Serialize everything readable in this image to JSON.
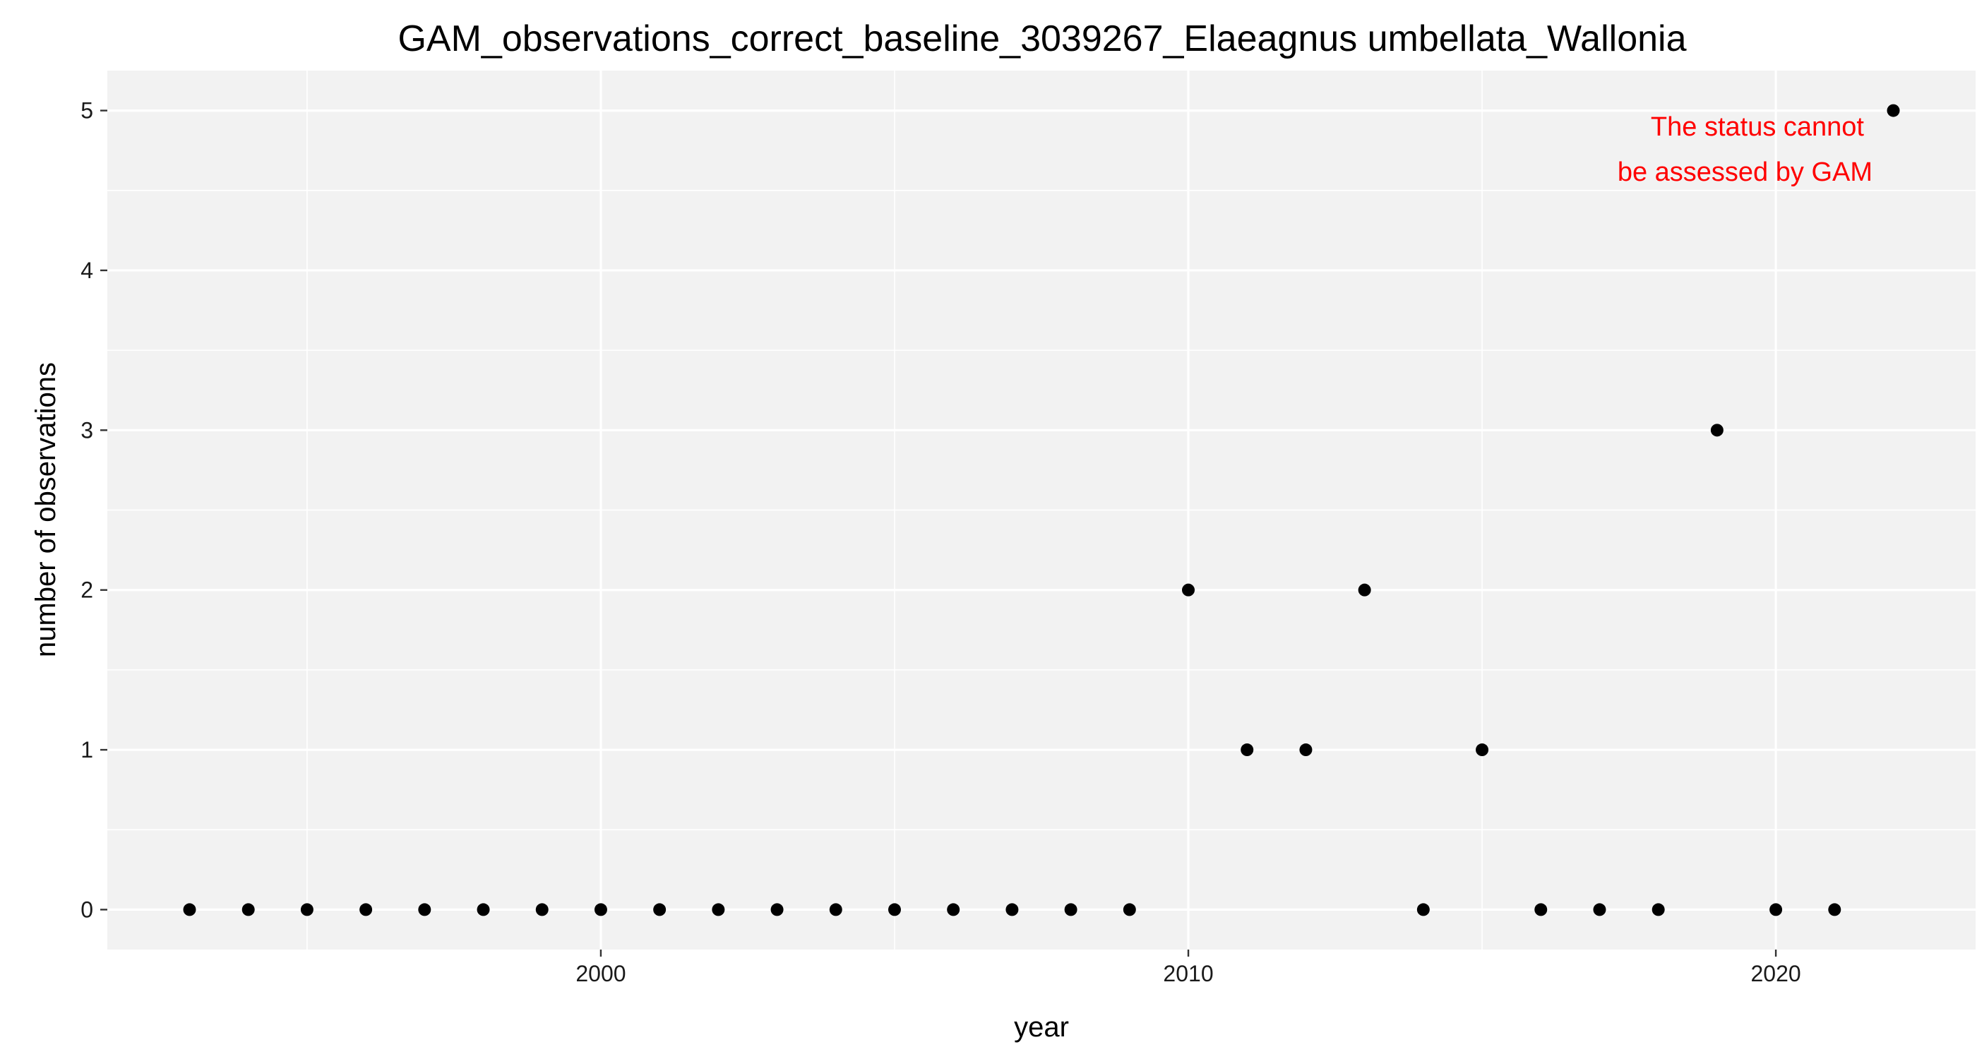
{
  "chart_data": {
    "type": "scatter",
    "title": "GAM_observations_correct_baseline_3039267_Elaeagnus umbellata_Wallonia",
    "xlabel": "year",
    "ylabel": "number of observations",
    "xlim": [
      1991.6,
      2023.4
    ],
    "ylim": [
      -0.25,
      5.25
    ],
    "x_ticks": [
      2000,
      2010,
      2020
    ],
    "x_minor_ticks": [
      1995,
      2005,
      2015
    ],
    "y_ticks": [
      0,
      1,
      2,
      3,
      4,
      5
    ],
    "y_minor_ticks": [
      0.5,
      1.5,
      2.5,
      3.5,
      4.5
    ],
    "grid": true,
    "legend": "none",
    "colors": {
      "panel_background": "#f2f2f2",
      "grid_line": "#ffffff",
      "point": "#000000",
      "annotation": "#ff0000"
    },
    "annotation": {
      "lines": [
        "The status cannot",
        "be assessed by GAM"
      ],
      "color": "#ff0000",
      "placement": "top-right"
    },
    "series": [
      {
        "x": [
          1993,
          1994,
          1995,
          1996,
          1997,
          1998,
          1999,
          2000,
          2001,
          2002,
          2003,
          2004,
          2005,
          2006,
          2007,
          2008,
          2009,
          2010,
          2011,
          2012,
          2013,
          2014,
          2015,
          2016,
          2017,
          2018,
          2019,
          2020,
          2021,
          2022
        ],
        "y": [
          0,
          0,
          0,
          0,
          0,
          0,
          0,
          0,
          0,
          0,
          0,
          0,
          0,
          0,
          0,
          0,
          0,
          2,
          1,
          1,
          2,
          0,
          1,
          0,
          0,
          0,
          3,
          0,
          0,
          5
        ]
      }
    ]
  }
}
